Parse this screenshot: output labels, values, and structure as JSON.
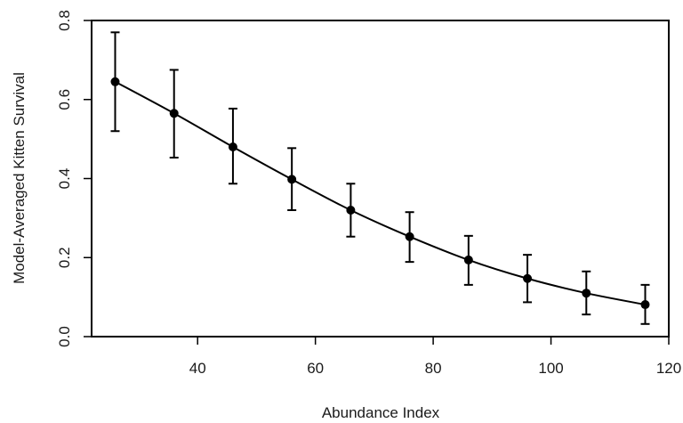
{
  "chart_data": {
    "type": "line",
    "title": "",
    "xlabel": "Abundance Index",
    "ylabel": "Model-Averaged Kitten Survival",
    "xlim": [
      22,
      120
    ],
    "ylim": [
      0,
      0.8
    ],
    "xticks": [
      40,
      60,
      80,
      100,
      120
    ],
    "yticks": [
      0.0,
      0.2,
      0.4,
      0.6,
      0.8
    ],
    "xtick_labels": [
      "40",
      "60",
      "80",
      "100",
      "120"
    ],
    "ytick_labels": [
      "0.0",
      "0.2",
      "0.4",
      "0.6",
      "0.8"
    ],
    "grid": false,
    "legend": "none",
    "colors": {
      "line": "#000000",
      "points": "#000000",
      "error_bars": "#000000",
      "frame": "#000000"
    },
    "series": [
      {
        "x": [
          26,
          36,
          46,
          56,
          66,
          76,
          86,
          96,
          106,
          116
        ],
        "y": [
          0.645,
          0.565,
          0.48,
          0.398,
          0.32,
          0.253,
          0.194,
          0.147,
          0.11,
          0.081
        ],
        "lower": [
          0.52,
          0.453,
          0.387,
          0.32,
          0.253,
          0.189,
          0.131,
          0.087,
          0.056,
          0.032
        ],
        "upper": [
          0.77,
          0.675,
          0.577,
          0.477,
          0.387,
          0.315,
          0.255,
          0.207,
          0.165,
          0.131
        ]
      }
    ]
  }
}
